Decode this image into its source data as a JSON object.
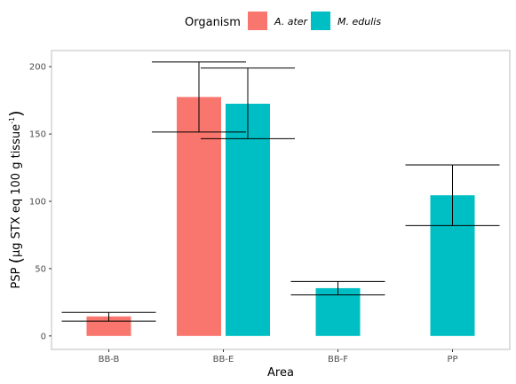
{
  "chart_data": {
    "type": "bar",
    "xlabel": "Area",
    "ylabel": "PSP (µg STX eq 100 g tissue⁻¹)",
    "ylabel_main": "PSP",
    "ylabel_inner": "µg STX eq 100 g tissue",
    "ylabel_sup": "-1",
    "categories": [
      "BB-B",
      "BB-E",
      "BB-F",
      "PP"
    ],
    "ylim": [
      -10,
      212
    ],
    "yticks": [
      0,
      50,
      100,
      150,
      200
    ],
    "grid": false,
    "legend": {
      "title": "Organism",
      "position": "top"
    },
    "series": [
      {
        "name": "A. ater",
        "color": "#f8766d",
        "values": [
          14.5,
          177.5,
          null,
          null
        ],
        "err_low": [
          11,
          151.5,
          null,
          null
        ],
        "err_high": [
          17.5,
          203.5,
          null,
          null
        ]
      },
      {
        "name": "M. edulis",
        "color": "#00bfc4",
        "values": [
          null,
          172.5,
          35.5,
          104.5
        ],
        "err_low": [
          null,
          146.5,
          30.5,
          82
        ],
        "err_high": [
          null,
          199,
          40.5,
          127
        ]
      }
    ]
  }
}
